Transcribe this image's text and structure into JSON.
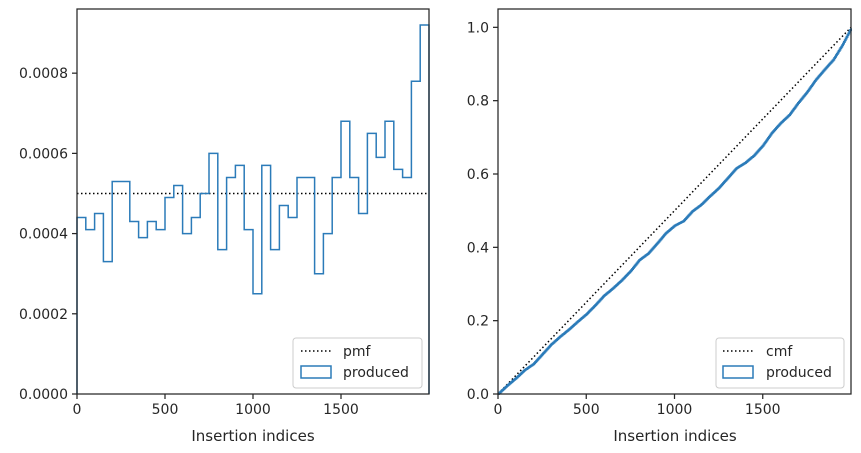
{
  "colors": {
    "produced": "#2b7bb9",
    "reference": "#000000",
    "frame": "#262626"
  },
  "chart_data": [
    {
      "type": "histogram",
      "xlabel": "Insertion indices",
      "ylabel": "",
      "xlim": [
        0,
        2000
      ],
      "ylim": [
        0,
        0.00096
      ],
      "xticks": [
        "0",
        "500",
        "1000",
        "1500"
      ],
      "xtick_values": [
        0,
        500,
        1000,
        1500
      ],
      "yticks": [
        "0.0000",
        "0.0002",
        "0.0004",
        "0.0006",
        "0.0008"
      ],
      "ytick_values": [
        0,
        0.0002,
        0.0004,
        0.0006,
        0.0008
      ],
      "grid": false,
      "legend": {
        "placement": "lower-right",
        "entries": [
          "pmf",
          "produced"
        ]
      },
      "series": [
        {
          "name": "pmf",
          "style": "dotted-line",
          "x": [
            0,
            2000
          ],
          "y": [
            0.0005,
            0.0005
          ]
        },
        {
          "name": "produced",
          "style": "step-histogram",
          "bin_width": 50,
          "bin_starts": [
            0,
            50,
            100,
            150,
            200,
            250,
            300,
            350,
            400,
            450,
            500,
            550,
            600,
            650,
            700,
            750,
            800,
            850,
            900,
            950,
            1000,
            1050,
            1100,
            1150,
            1200,
            1250,
            1300,
            1350,
            1400,
            1450,
            1500,
            1550,
            1600,
            1650,
            1700,
            1750,
            1800,
            1850,
            1900,
            1950
          ],
          "values": [
            0.00044,
            0.00041,
            0.00045,
            0.00033,
            0.00053,
            0.00053,
            0.00043,
            0.00039,
            0.00043,
            0.00041,
            0.00049,
            0.00052,
            0.0004,
            0.00044,
            0.0005,
            0.0006,
            0.00036,
            0.00054,
            0.00057,
            0.00041,
            0.00025,
            0.00057,
            0.00036,
            0.00047,
            0.00044,
            0.00054,
            0.00054,
            0.0003,
            0.0004,
            0.00054,
            0.00068,
            0.00054,
            0.00045,
            0.00065,
            0.00059,
            0.00068,
            0.00056,
            0.00054,
            0.00078,
            0.00092
          ]
        }
      ]
    },
    {
      "type": "line",
      "xlabel": "Insertion indices",
      "ylabel": "",
      "xlim": [
        0,
        2000
      ],
      "ylim": [
        0,
        1.05
      ],
      "xticks": [
        "0",
        "500",
        "1000",
        "1500"
      ],
      "xtick_values": [
        0,
        500,
        1000,
        1500
      ],
      "yticks": [
        "0.0",
        "0.2",
        "0.4",
        "0.6",
        "0.8",
        "1.0"
      ],
      "ytick_values": [
        0,
        0.2,
        0.4,
        0.6,
        0.8,
        1.0
      ],
      "grid": false,
      "legend": {
        "placement": "lower-right",
        "entries": [
          "cmf",
          "produced"
        ]
      },
      "series": [
        {
          "name": "cmf",
          "style": "dotted-line",
          "x": [
            0,
            2000
          ],
          "y": [
            0,
            1.0
          ]
        },
        {
          "name": "produced",
          "style": "cumulative-step",
          "x": [
            0,
            50,
            100,
            150,
            200,
            250,
            300,
            350,
            400,
            450,
            500,
            550,
            600,
            650,
            700,
            750,
            800,
            850,
            900,
            950,
            1000,
            1050,
            1100,
            1150,
            1200,
            1250,
            1300,
            1350,
            1400,
            1450,
            1500,
            1550,
            1600,
            1650,
            1700,
            1750,
            1800,
            1850,
            1900,
            1950,
            2000
          ],
          "y": [
            0,
            0.022,
            0.0425,
            0.065,
            0.0815,
            0.108,
            0.1345,
            0.156,
            0.1755,
            0.197,
            0.2175,
            0.242,
            0.268,
            0.288,
            0.31,
            0.335,
            0.365,
            0.383,
            0.41,
            0.4385,
            0.459,
            0.4715,
            0.498,
            0.516,
            0.5395,
            0.5615,
            0.5885,
            0.6155,
            0.6305,
            0.6505,
            0.6775,
            0.7115,
            0.7385,
            0.761,
            0.7935,
            0.823,
            0.857,
            0.885,
            0.912,
            0.951,
            0.997
          ]
        }
      ]
    }
  ]
}
